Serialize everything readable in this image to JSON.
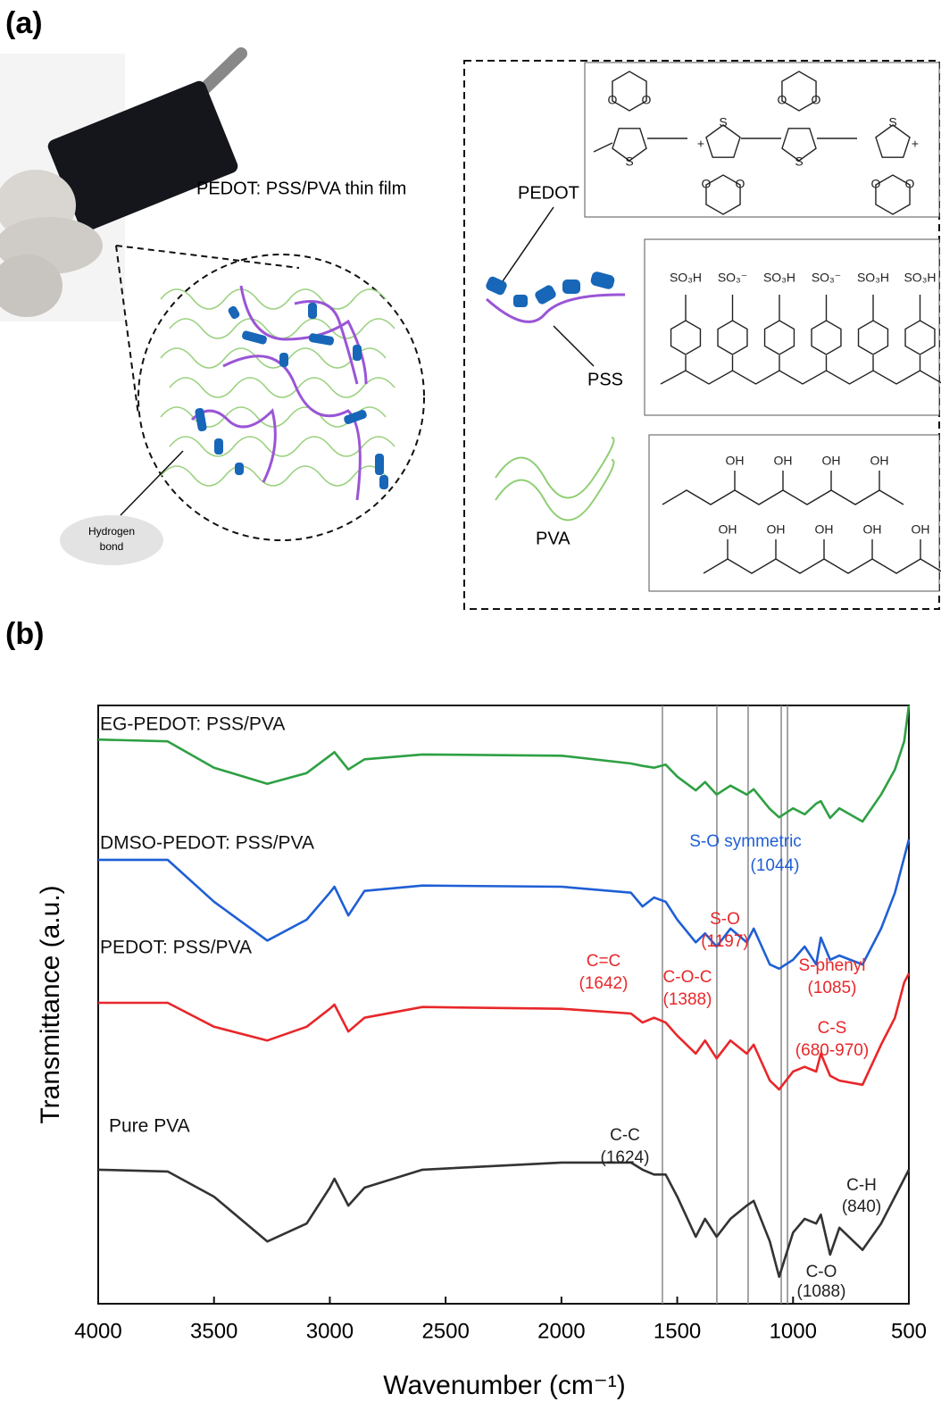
{
  "panel_a": {
    "label": "(a)",
    "film_caption": "PEDOT: PSS/PVA thin film",
    "hydrogen_bond": [
      "Hydrogen",
      "bond"
    ],
    "pedot_label": "PEDOT",
    "pss_label": "PSS",
    "pva_label": "PVA",
    "pedot_atoms": {
      "s": "S",
      "o": "O",
      "plus": "+"
    },
    "pss_groups": [
      "SO₃H",
      "SO₃⁻",
      "SO₃H",
      "SO₃⁻",
      "SO₃H",
      "SO₃H"
    ],
    "pva_oh": "OH"
  },
  "panel_b_label": "(b)",
  "chart_data": {
    "type": "line",
    "x_label": "Wavenumber (cm⁻¹)",
    "y_label": "Transmittance (a.u.)",
    "xlim": [
      4000,
      500
    ],
    "xticks": [
      4000,
      3500,
      3000,
      2500,
      2000,
      1500,
      1000,
      500
    ],
    "ylim": [
      0,
      100
    ],
    "reference_lines": [
      1564,
      1329,
      1194,
      1051,
      1024
    ],
    "x": [
      4000,
      3700,
      3500,
      3270,
      3100,
      3000,
      2980,
      2920,
      2850,
      2600,
      2000,
      1700,
      1650,
      1600,
      1550,
      1500,
      1420,
      1380,
      1330,
      1270,
      1200,
      1170,
      1100,
      1060,
      1000,
      950,
      900,
      880,
      840,
      800,
      700,
      620,
      560,
      520,
      500
    ],
    "series": [
      {
        "name": "EG-PEDOT: PSS/PVA",
        "color": "#2ea043",
        "values": [
          94.3,
          94.0,
          89.6,
          86.9,
          88.7,
          91.6,
          92.2,
          89.3,
          91.0,
          91.8,
          91.6,
          90.3,
          89.9,
          89.6,
          90.1,
          88.1,
          85.8,
          87.2,
          85.1,
          86.6,
          85.1,
          86.0,
          82.7,
          81.3,
          82.8,
          81.8,
          83.6,
          84.0,
          81.2,
          82.8,
          80.6,
          85.1,
          89.3,
          94.0,
          100
        ]
      },
      {
        "name": "DMSO-PEDOT: PSS/PVA",
        "color": "#1f5fd6",
        "values": [
          74.2,
          74.2,
          67.2,
          60.7,
          64.2,
          68.7,
          69.7,
          64.9,
          69.0,
          69.9,
          69.7,
          68.7,
          66.4,
          67.9,
          67.2,
          64.2,
          60.4,
          61.9,
          59.7,
          62.7,
          60.4,
          62.7,
          56.7,
          56.0,
          57.5,
          59.7,
          56.7,
          61.2,
          57.5,
          58.2,
          56.7,
          62.7,
          68.7,
          74.6,
          77.6
        ]
      },
      {
        "name": "PEDOT: PSS/PVA",
        "color": "#e8272a",
        "values": [
          50.3,
          50.3,
          46.3,
          44.0,
          46.3,
          49.3,
          50.0,
          45.5,
          47.8,
          49.6,
          49.3,
          48.5,
          47.0,
          47.8,
          47.0,
          44.8,
          41.8,
          44.0,
          41.0,
          44.0,
          41.8,
          43.3,
          37.3,
          35.8,
          38.8,
          39.6,
          38.8,
          41.8,
          38.1,
          37.3,
          36.6,
          43.3,
          47.8,
          53.7,
          55.2
        ]
      },
      {
        "name": "Pure PVA",
        "color": "#333333",
        "values": [
          22.4,
          22.1,
          17.9,
          10.4,
          13.4,
          19.4,
          20.9,
          16.4,
          19.4,
          22.4,
          23.6,
          23.6,
          22.4,
          21.6,
          21.6,
          17.9,
          11.2,
          14.2,
          11.2,
          14.2,
          16.4,
          17.2,
          10.4,
          4.5,
          11.9,
          14.2,
          13.4,
          14.9,
          8.2,
          12.7,
          9.0,
          13.4,
          17.9,
          20.9,
          22.4
        ]
      }
    ],
    "annotations": [
      {
        "text": "S-O symmetric",
        "color": "#1f5fd6"
      },
      {
        "text": "(1044)",
        "color": "#1f5fd6"
      },
      {
        "text": "S-O",
        "color": "#e8272a"
      },
      {
        "text": "(1197)",
        "color": "#e8272a"
      },
      {
        "text": "C=C",
        "color": "#e8272a"
      },
      {
        "text": "(1642)",
        "color": "#e8272a"
      },
      {
        "text": "C-O-C",
        "color": "#e8272a"
      },
      {
        "text": "(1388)",
        "color": "#e8272a"
      },
      {
        "text": "S-phenyl",
        "color": "#e8272a"
      },
      {
        "text": "(1085)",
        "color": "#e8272a"
      },
      {
        "text": "C-S",
        "color": "#e8272a"
      },
      {
        "text": "(680-970)",
        "color": "#e8272a"
      },
      {
        "text": "C-C",
        "color": "#222222"
      },
      {
        "text": "(1624)",
        "color": "#222222"
      },
      {
        "text": "C-H",
        "color": "#222222"
      },
      {
        "text": "(840)",
        "color": "#222222"
      },
      {
        "text": "C-O",
        "color": "#222222"
      },
      {
        "text": "(1088)",
        "color": "#222222"
      }
    ]
  }
}
